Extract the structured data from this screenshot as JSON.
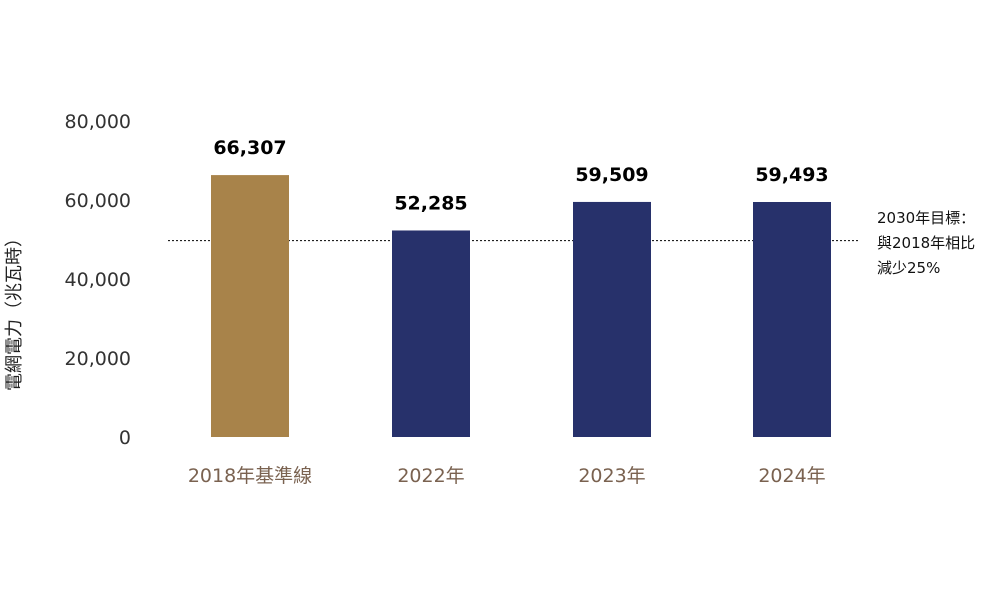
{
  "chart_data": {
    "type": "bar",
    "categories": [
      "2018年基準線",
      "2022年",
      "2023年",
      "2024年"
    ],
    "values": [
      66307,
      52285,
      59509,
      59493
    ],
    "value_labels": [
      "66,307",
      "52,285",
      "59,509",
      "59,493"
    ],
    "title": "",
    "xlabel": "",
    "ylabel": "電網電力（兆瓦時）",
    "ylim": [
      0,
      80000
    ],
    "yticks": [
      0,
      20000,
      40000,
      60000,
      80000
    ],
    "ytick_labels": [
      "0",
      "20,000",
      "40,000",
      "60,000",
      "80,000"
    ],
    "grid": false,
    "legend": "none",
    "bar_colors": [
      "#A8834A",
      "#27316B",
      "#27316B",
      "#27316B"
    ],
    "category_label_color": "#7A6250",
    "target_line": {
      "value": 49730,
      "style": "dotted",
      "color": "#000000",
      "annotation": [
        "2030年目標：",
        "與2018年相比",
        "減少25%"
      ]
    }
  }
}
